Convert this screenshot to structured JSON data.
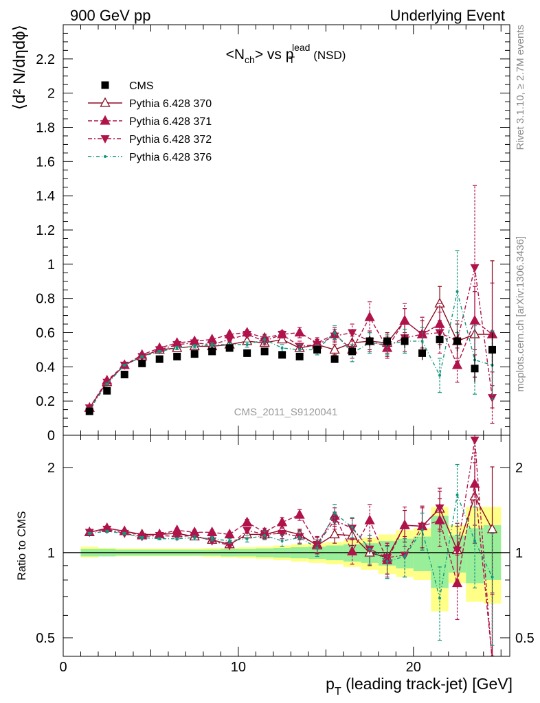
{
  "header": {
    "left": "900 GeV pp",
    "right": "Underlying Event"
  },
  "side_labels": {
    "rivet": "Rivet 3.1.10, ≥ 2.7M events",
    "mcplots": "mcplots.cern.ch [arXiv:1306.3436]"
  },
  "chart_data": [
    {
      "type": "scatter",
      "title": {
        "pre": "<N",
        "sub1": "ch",
        "mid": "> vs p",
        "sub2": "T",
        "sup2": "lead",
        "post": " (NSD)"
      },
      "ylabel": "⟨d² N/dηdϕ⟩",
      "watermark": "CMS_2011_S9120041",
      "xlim": [
        0,
        25.5
      ],
      "ylim": [
        0,
        2.4
      ],
      "yticks": [
        "0",
        "0.2",
        "0.4",
        "0.6",
        "0.8",
        "1",
        "1.2",
        "1.4",
        "1.6",
        "1.8",
        "2",
        "2.2"
      ],
      "ytick_values": [
        0,
        0.2,
        0.4,
        0.6,
        0.8,
        1,
        1.2,
        1.4,
        1.6,
        1.8,
        2,
        2.2
      ],
      "legend_position": "top-left",
      "x": [
        1.5,
        2.5,
        3.5,
        4.5,
        5.5,
        6.5,
        7.5,
        8.5,
        9.5,
        10.5,
        11.5,
        12.5,
        13.5,
        14.5,
        15.5,
        16.5,
        17.5,
        18.5,
        19.5,
        20.5,
        21.5,
        22.5,
        23.5,
        24.5
      ],
      "series": [
        {
          "name": "CMS",
          "color": "#000000",
          "marker": "square",
          "values": [
            0.14,
            0.26,
            0.355,
            0.42,
            0.445,
            0.46,
            0.475,
            0.49,
            0.51,
            0.48,
            0.49,
            0.47,
            0.46,
            0.5,
            0.445,
            0.49,
            0.55,
            0.55,
            0.55,
            0.48,
            0.56,
            0.55,
            0.39,
            0.5
          ],
          "errors": [
            0.01,
            0.01,
            0.01,
            0.01,
            0.01,
            0.01,
            0.01,
            0.01,
            0.01,
            0.01,
            0.01,
            0.01,
            0.015,
            0.02,
            0.02,
            0.02,
            0.03,
            0.03,
            0.04,
            0.04,
            0.05,
            0.06,
            0.08,
            0.1
          ]
        },
        {
          "name": "Pythia 6.428 370",
          "color": "#8b0a1e",
          "marker": "triangle-open",
          "dash": "",
          "values": [
            0.16,
            0.31,
            0.41,
            0.46,
            0.5,
            0.51,
            0.52,
            0.52,
            0.53,
            0.55,
            0.54,
            0.56,
            0.51,
            0.53,
            0.5,
            0.54,
            0.55,
            0.54,
            0.67,
            0.59,
            0.77,
            0.55,
            0.59,
            0.59
          ],
          "errors": [
            0.005,
            0.005,
            0.005,
            0.005,
            0.005,
            0.005,
            0.01,
            0.01,
            0.01,
            0.01,
            0.015,
            0.02,
            0.02,
            0.03,
            0.03,
            0.04,
            0.05,
            0.06,
            0.07,
            0.08,
            0.1,
            0.1,
            0.25,
            0.43
          ]
        },
        {
          "name": "Pythia 6.428 371",
          "color": "#b0124a",
          "marker": "triangle",
          "dash": "6,3",
          "values": [
            0.16,
            0.32,
            0.41,
            0.47,
            0.51,
            0.54,
            0.55,
            0.56,
            0.59,
            0.6,
            0.57,
            0.59,
            0.6,
            0.54,
            0.59,
            0.5,
            0.69,
            0.51,
            0.67,
            0.59,
            0.65,
            0.41,
            0.67,
            0.59
          ],
          "errors": [
            0.005,
            0.005,
            0.005,
            0.005,
            0.005,
            0.01,
            0.01,
            0.01,
            0.01,
            0.015,
            0.02,
            0.02,
            0.03,
            0.03,
            0.04,
            0.05,
            0.09,
            0.06,
            0.1,
            0.1,
            0.12,
            0.1,
            0.2,
            0.3
          ]
        },
        {
          "name": "Pythia 6.428 372",
          "color": "#b0124a",
          "marker": "triangle-down",
          "dash": "6,3,2,3",
          "values": [
            0.16,
            0.31,
            0.41,
            0.46,
            0.5,
            0.53,
            0.54,
            0.53,
            0.56,
            0.59,
            0.55,
            0.59,
            0.52,
            0.53,
            0.58,
            0.6,
            0.55,
            0.52,
            0.57,
            0.59,
            0.6,
            0.55,
            0.98,
            0.22
          ],
          "errors": [
            0.005,
            0.005,
            0.005,
            0.005,
            0.005,
            0.01,
            0.01,
            0.01,
            0.01,
            0.015,
            0.02,
            0.02,
            0.03,
            0.03,
            0.04,
            0.05,
            0.06,
            0.06,
            0.08,
            0.1,
            0.12,
            0.12,
            0.48,
            0.15
          ]
        },
        {
          "name": "Pythia 6.428 376",
          "color": "#12967e",
          "marker": "dot",
          "dash": "5,3,1,3",
          "values": [
            0.15,
            0.3,
            0.41,
            0.46,
            0.49,
            0.51,
            0.52,
            0.53,
            0.53,
            0.53,
            0.56,
            0.51,
            0.5,
            0.5,
            0.6,
            0.48,
            0.54,
            0.53,
            0.55,
            0.55,
            0.35,
            0.84,
            0.44,
            0.41
          ],
          "errors": [
            0.005,
            0.005,
            0.005,
            0.005,
            0.005,
            0.01,
            0.01,
            0.01,
            0.01,
            0.015,
            0.02,
            0.02,
            0.03,
            0.03,
            0.04,
            0.05,
            0.06,
            0.06,
            0.07,
            0.08,
            0.1,
            0.24,
            0.2,
            0.2
          ]
        }
      ]
    },
    {
      "type": "scatter",
      "ylabel": "Ratio to CMS",
      "xlabel": {
        "pre": "p",
        "sub": "T",
        "post": " (leading track-jet) [GeV]"
      },
      "xlim": [
        0,
        25.5
      ],
      "xticks": [
        "0",
        "10",
        "20"
      ],
      "xtick_values": [
        0,
        10,
        20
      ],
      "ylim": [
        0.43,
        2.6
      ],
      "y_scale": "log",
      "yticks": [
        "0.5",
        "1",
        "2"
      ],
      "ytick_values": [
        0.5,
        1,
        2
      ],
      "reference_line": 1,
      "band_colors": {
        "inner": "#99ee99",
        "outer": "#ffff88"
      },
      "bands": [
        {
          "x0": 1,
          "x1": 2,
          "inner": [
            0.97,
            1.03
          ],
          "outer": [
            0.96,
            1.05
          ]
        },
        {
          "x0": 2,
          "x1": 3,
          "inner": [
            0.97,
            1.03
          ],
          "outer": [
            0.97,
            1.04
          ]
        },
        {
          "x0": 3,
          "x1": 4,
          "inner": [
            0.975,
            1.025
          ],
          "outer": [
            0.97,
            1.035
          ]
        },
        {
          "x0": 4,
          "x1": 5,
          "inner": [
            0.975,
            1.025
          ],
          "outer": [
            0.97,
            1.035
          ]
        },
        {
          "x0": 5,
          "x1": 6,
          "inner": [
            0.975,
            1.025
          ],
          "outer": [
            0.97,
            1.035
          ]
        },
        {
          "x0": 6,
          "x1": 7,
          "inner": [
            0.975,
            1.025
          ],
          "outer": [
            0.97,
            1.035
          ]
        },
        {
          "x0": 7,
          "x1": 8,
          "inner": [
            0.975,
            1.025
          ],
          "outer": [
            0.97,
            1.035
          ]
        },
        {
          "x0": 8,
          "x1": 9,
          "inner": [
            0.975,
            1.025
          ],
          "outer": [
            0.965,
            1.04
          ]
        },
        {
          "x0": 9,
          "x1": 10,
          "inner": [
            0.97,
            1.03
          ],
          "outer": [
            0.96,
            1.04
          ]
        },
        {
          "x0": 10,
          "x1": 11,
          "inner": [
            0.97,
            1.03
          ],
          "outer": [
            0.955,
            1.045
          ]
        },
        {
          "x0": 11,
          "x1": 12,
          "inner": [
            0.965,
            1.035
          ],
          "outer": [
            0.95,
            1.05
          ]
        },
        {
          "x0": 12,
          "x1": 13,
          "inner": [
            0.96,
            1.04
          ],
          "outer": [
            0.94,
            1.06
          ]
        },
        {
          "x0": 13,
          "x1": 14,
          "inner": [
            0.955,
            1.045
          ],
          "outer": [
            0.93,
            1.07
          ]
        },
        {
          "x0": 14,
          "x1": 15,
          "inner": [
            0.95,
            1.05
          ],
          "outer": [
            0.92,
            1.08
          ]
        },
        {
          "x0": 15,
          "x1": 16,
          "inner": [
            0.94,
            1.06
          ],
          "outer": [
            0.91,
            1.09
          ]
        },
        {
          "x0": 16,
          "x1": 17,
          "inner": [
            0.93,
            1.07
          ],
          "outer": [
            0.89,
            1.11
          ]
        },
        {
          "x0": 17,
          "x1": 18,
          "inner": [
            0.92,
            1.08
          ],
          "outer": [
            0.87,
            1.13
          ]
        },
        {
          "x0": 18,
          "x1": 19,
          "inner": [
            0.9,
            1.1
          ],
          "outer": [
            0.84,
            1.16
          ]
        },
        {
          "x0": 19,
          "x1": 20,
          "inner": [
            0.88,
            1.12
          ],
          "outer": [
            0.82,
            1.2
          ]
        },
        {
          "x0": 20,
          "x1": 21,
          "inner": [
            0.86,
            1.14
          ],
          "outer": [
            0.8,
            1.22
          ]
        },
        {
          "x0": 21,
          "x1": 22,
          "inner": [
            0.75,
            1.35
          ],
          "outer": [
            0.62,
            1.45
          ]
        },
        {
          "x0": 22,
          "x1": 23,
          "inner": [
            0.85,
            1.15
          ],
          "outer": [
            0.78,
            1.25
          ]
        },
        {
          "x0": 23,
          "x1": 24,
          "inner": [
            0.78,
            1.22
          ],
          "outer": [
            0.67,
            1.45
          ]
        },
        {
          "x0": 24,
          "x1": 25,
          "inner": [
            0.8,
            1.25
          ],
          "outer": [
            0.66,
            1.45
          ]
        }
      ],
      "series": [
        {
          "name": "Pythia 6.428 370",
          "values": [
            1.18,
            1.22,
            1.19,
            1.16,
            1.16,
            1.17,
            1.14,
            1.11,
            1.07,
            1.16,
            1.16,
            1.2,
            1.16,
            1.06,
            1.16,
            1.15,
            1.0,
            0.96,
            1.25,
            1.24,
            1.43,
            1.02,
            1.58,
            1.21
          ],
          "errors": [
            0.01,
            0.01,
            0.01,
            0.01,
            0.01,
            0.01,
            0.02,
            0.02,
            0.02,
            0.03,
            0.04,
            0.05,
            0.05,
            0.07,
            0.08,
            0.09,
            0.1,
            0.12,
            0.16,
            0.2,
            0.22,
            0.25,
            0.5,
            0.8
          ]
        },
        {
          "name": "Pythia 6.428 371",
          "values": [
            1.18,
            1.22,
            1.19,
            1.15,
            1.16,
            1.2,
            1.18,
            1.18,
            1.16,
            1.28,
            1.18,
            1.28,
            1.36,
            1.07,
            1.35,
            1.01,
            1.3,
            0.94,
            1.25,
            1.24,
            1.3,
            0.78,
            1.75,
            0.42
          ],
          "errors": [
            0.01,
            0.01,
            0.01,
            0.01,
            0.01,
            0.01,
            0.02,
            0.02,
            0.02,
            0.03,
            0.04,
            0.05,
            0.06,
            0.07,
            0.09,
            0.1,
            0.18,
            0.12,
            0.2,
            0.22,
            0.25,
            0.2,
            0.5,
            0.3
          ]
        },
        {
          "name": "Pythia 6.428 372",
          "values": [
            1.18,
            1.21,
            1.17,
            1.14,
            1.15,
            1.14,
            1.15,
            1.1,
            1.06,
            1.2,
            1.16,
            1.17,
            1.14,
            1.07,
            1.3,
            1.22,
            1.03,
            0.96,
            0.98,
            1.24,
            1.44,
            1.02,
            2.5,
            0.41
          ],
          "errors": [
            0.01,
            0.01,
            0.01,
            0.01,
            0.01,
            0.01,
            0.02,
            0.02,
            0.02,
            0.03,
            0.04,
            0.05,
            0.06,
            0.07,
            0.09,
            0.1,
            0.12,
            0.12,
            0.16,
            0.22,
            0.25,
            0.22,
            0.9,
            0.3
          ]
        },
        {
          "name": "Pythia 6.428 376",
          "values": [
            1.17,
            1.19,
            1.17,
            1.13,
            1.12,
            1.12,
            1.13,
            1.12,
            1.1,
            1.12,
            1.15,
            1.1,
            1.13,
            1.04,
            1.38,
            1.23,
            1.03,
            0.93,
            0.97,
            1.2,
            0.69,
            1.6,
            1.1,
            0.82
          ],
          "errors": [
            0.01,
            0.01,
            0.01,
            0.01,
            0.01,
            0.01,
            0.02,
            0.02,
            0.02,
            0.03,
            0.04,
            0.05,
            0.06,
            0.07,
            0.1,
            0.1,
            0.12,
            0.12,
            0.15,
            0.18,
            0.2,
            0.45,
            0.35,
            0.35
          ]
        }
      ]
    }
  ]
}
